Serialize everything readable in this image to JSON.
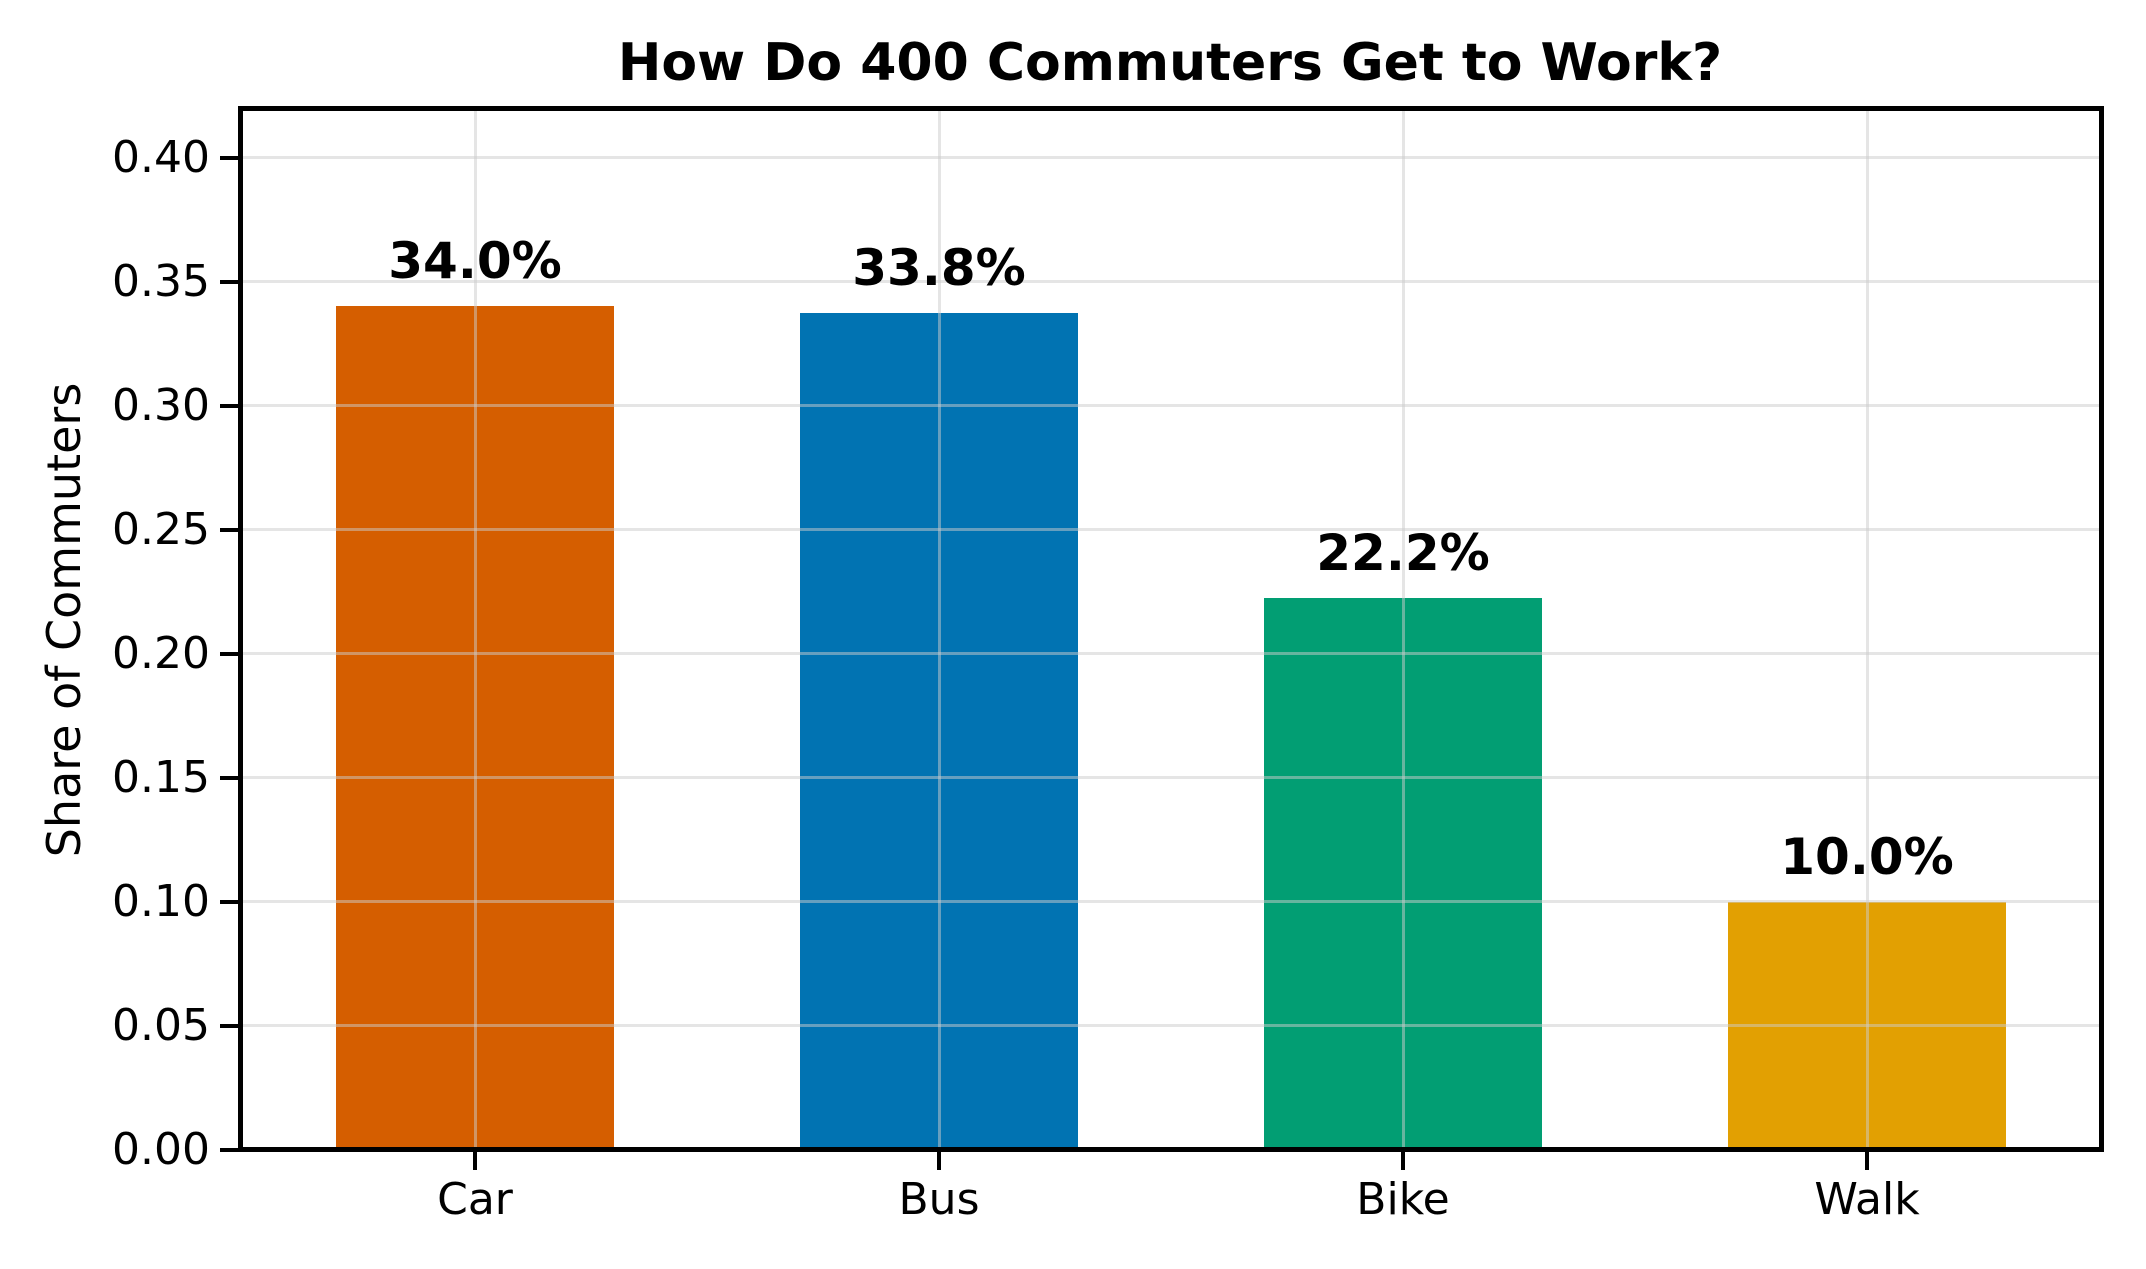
{
  "chart_data": {
    "type": "bar",
    "title": "How Do 400 Commuters Get to Work?",
    "ylabel": "Share of Commuters",
    "xlabel": "",
    "categories": [
      "Car",
      "Bus",
      "Bike",
      "Walk"
    ],
    "values": [
      0.34,
      0.3375,
      0.2225,
      0.1
    ],
    "bar_labels": [
      "34.0%",
      "33.8%",
      "22.2%",
      "10.0%"
    ],
    "bar_colors": [
      "#d55e00",
      "#0173b2",
      "#029e73",
      "#e2a002"
    ],
    "ylim": [
      0,
      0.42
    ],
    "yticks": [
      0.0,
      0.05,
      0.1,
      0.15,
      0.2,
      0.25,
      0.3,
      0.35,
      0.4
    ],
    "ytick_labels": [
      "0.00",
      "0.05",
      "0.10",
      "0.15",
      "0.20",
      "0.25",
      "0.30",
      "0.35",
      "0.40"
    ],
    "grid": true,
    "grid_axis": "both",
    "legend": "none",
    "bar_width_fraction": 0.6,
    "colors": {
      "text": "#000000",
      "frame": "#000000",
      "grid": "rgba(204,204,204,0.5)",
      "background": "#ffffff"
    }
  }
}
